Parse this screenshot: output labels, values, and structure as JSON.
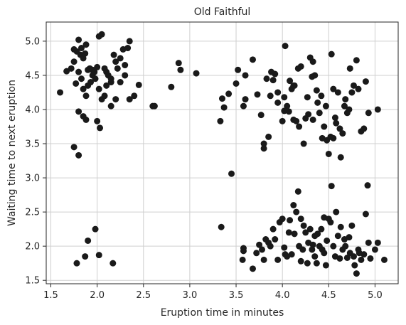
{
  "chart_data": {
    "type": "scatter",
    "title": "Old Faithful",
    "xlabel": "Eruption time in minutes",
    "ylabel": "Waiting time to next eruption",
    "xlim": [
      1.45,
      5.25
    ],
    "ylim": [
      1.45,
      5.28
    ],
    "xticks": [
      1.5,
      2.0,
      2.5,
      3.0,
      3.5,
      4.0,
      4.5,
      5.0
    ],
    "yticks": [
      1.5,
      2.0,
      2.5,
      3.0,
      3.5,
      4.0,
      4.5,
      5.0
    ],
    "xtick_labels": [
      "1.5",
      "2.0",
      "2.5",
      "3.0",
      "3.5",
      "4.0",
      "4.5",
      "5.0"
    ],
    "ytick_labels": [
      "1.5",
      "2.0",
      "2.5",
      "3.0",
      "3.5",
      "4.0",
      "4.5",
      "5.0"
    ],
    "grid": true,
    "marker_color": "#1a1a1a",
    "points": [
      [
        1.6,
        4.25
      ],
      [
        1.67,
        4.56
      ],
      [
        1.72,
        4.6
      ],
      [
        1.75,
        4.88
      ],
      [
        1.75,
        4.7
      ],
      [
        1.78,
        4.85
      ],
      [
        1.8,
        5.02
      ],
      [
        1.82,
        4.8
      ],
      [
        1.83,
        4.9
      ],
      [
        1.85,
        4.75
      ],
      [
        1.87,
        4.82
      ],
      [
        1.88,
        4.95
      ],
      [
        1.9,
        4.58
      ],
      [
        1.92,
        4.6
      ],
      [
        1.95,
        4.5
      ],
      [
        1.97,
        4.55
      ],
      [
        2.0,
        4.62
      ],
      [
        2.02,
        5.07
      ],
      [
        2.05,
        5.1
      ],
      [
        2.08,
        4.6
      ],
      [
        2.1,
        4.55
      ],
      [
        2.12,
        4.5
      ],
      [
        2.15,
        4.4
      ],
      [
        2.18,
        4.8
      ],
      [
        2.2,
        4.7
      ],
      [
        2.22,
        4.6
      ],
      [
        2.25,
        4.75
      ],
      [
        2.28,
        4.88
      ],
      [
        2.3,
        4.65
      ],
      [
        2.33,
        4.9
      ],
      [
        2.35,
        5.0
      ],
      [
        1.77,
        4.38
      ],
      [
        1.8,
        4.55
      ],
      [
        1.83,
        4.45
      ],
      [
        1.85,
        4.3
      ],
      [
        1.88,
        4.2
      ],
      [
        1.9,
        4.35
      ],
      [
        1.93,
        4.4
      ],
      [
        1.95,
        4.58
      ],
      [
        1.98,
        4.45
      ],
      [
        2.02,
        4.3
      ],
      [
        2.05,
        4.15
      ],
      [
        2.08,
        4.2
      ],
      [
        2.1,
        4.35
      ],
      [
        2.15,
        4.45
      ],
      [
        2.2,
        4.15
      ],
      [
        2.25,
        4.4
      ],
      [
        2.3,
        4.5
      ],
      [
        2.35,
        4.15
      ],
      [
        2.4,
        4.2
      ],
      [
        2.45,
        4.36
      ],
      [
        1.8,
        3.97
      ],
      [
        1.85,
        3.9
      ],
      [
        1.88,
        3.85
      ],
      [
        2.0,
        3.83
      ],
      [
        2.03,
        3.73
      ],
      [
        2.15,
        4.05
      ],
      [
        1.75,
        3.45
      ],
      [
        1.8,
        3.33
      ],
      [
        1.78,
        1.75
      ],
      [
        1.87,
        1.85
      ],
      [
        1.9,
        2.08
      ],
      [
        1.98,
        2.25
      ],
      [
        2.02,
        1.87
      ],
      [
        2.17,
        1.75
      ],
      [
        2.6,
        4.05
      ],
      [
        2.62,
        4.05
      ],
      [
        2.8,
        4.33
      ],
      [
        2.88,
        4.68
      ],
      [
        2.9,
        4.58
      ],
      [
        3.07,
        4.53
      ],
      [
        3.33,
        3.83
      ],
      [
        3.35,
        4.16
      ],
      [
        3.37,
        4.03
      ],
      [
        3.42,
        4.23
      ],
      [
        3.5,
        4.38
      ],
      [
        3.52,
        4.58
      ],
      [
        3.58,
        4.05
      ],
      [
        3.6,
        4.5
      ],
      [
        3.6,
        4.15
      ],
      [
        3.68,
        4.73
      ],
      [
        3.73,
        4.22
      ],
      [
        3.77,
        3.92
      ],
      [
        3.8,
        3.5
      ],
      [
        3.8,
        3.43
      ],
      [
        3.83,
        4.45
      ],
      [
        3.85,
        3.6
      ],
      [
        3.87,
        4.2
      ],
      [
        3.88,
        4.55
      ],
      [
        3.9,
        4.43
      ],
      [
        3.92,
        4.52
      ],
      [
        3.95,
        4.25
      ],
      [
        4.0,
        3.83
      ],
      [
        4.02,
        4.18
      ],
      [
        4.03,
        4.93
      ],
      [
        4.05,
        4.05
      ],
      [
        4.07,
        3.97
      ],
      [
        4.08,
        4.42
      ],
      [
        4.1,
        4.3
      ],
      [
        4.12,
        3.85
      ],
      [
        4.13,
        4.35
      ],
      [
        4.15,
        3.83
      ],
      [
        4.17,
        4.6
      ],
      [
        4.2,
        4.63
      ],
      [
        4.23,
        3.5
      ],
      [
        4.25,
        3.87
      ],
      [
        4.27,
        4.18
      ],
      [
        4.28,
        3.93
      ],
      [
        4.3,
        4.76
      ],
      [
        4.32,
        4.48
      ],
      [
        4.33,
        4.7
      ],
      [
        4.35,
        4.5
      ],
      [
        4.37,
        4.28
      ],
      [
        4.38,
        4.1
      ],
      [
        4.4,
        3.95
      ],
      [
        4.42,
        4.2
      ],
      [
        4.45,
        3.75
      ],
      [
        4.47,
        4.05
      ],
      [
        4.48,
        3.55
      ],
      [
        4.5,
        3.35
      ],
      [
        4.52,
        3.6
      ],
      [
        4.53,
        4.81
      ],
      [
        4.55,
        4.3
      ],
      [
        4.57,
        3.88
      ],
      [
        4.58,
        3.8
      ],
      [
        4.6,
        4.25
      ],
      [
        4.62,
        3.72
      ],
      [
        4.63,
        3.3
      ],
      [
        4.65,
        3.65
      ],
      [
        4.67,
        4.05
      ],
      [
        4.68,
        4.15
      ],
      [
        4.7,
        3.95
      ],
      [
        4.72,
        4.0
      ],
      [
        4.73,
        4.6
      ],
      [
        4.75,
        4.25
      ],
      [
        4.77,
        4.35
      ],
      [
        4.8,
        4.72
      ],
      [
        4.82,
        4.3
      ],
      [
        4.85,
        3.68
      ],
      [
        4.88,
        3.72
      ],
      [
        4.9,
        4.41
      ],
      [
        4.93,
        3.95
      ],
      [
        5.03,
        4.0
      ],
      [
        4.55,
        3.58
      ],
      [
        4.43,
        3.58
      ],
      [
        4.33,
        3.85
      ],
      [
        4.18,
        3.75
      ],
      [
        4.12,
        4.35
      ],
      [
        4.02,
        3.98
      ],
      [
        3.95,
        4.1
      ],
      [
        3.34,
        2.28
      ],
      [
        3.45,
        3.06
      ],
      [
        3.57,
        1.8
      ],
      [
        3.58,
        1.93
      ],
      [
        3.58,
        1.97
      ],
      [
        3.68,
        1.67
      ],
      [
        3.72,
        1.9
      ],
      [
        3.75,
        2.02
      ],
      [
        3.78,
        1.95
      ],
      [
        3.8,
        1.8
      ],
      [
        3.82,
        2.1
      ],
      [
        3.85,
        2.05
      ],
      [
        3.87,
        2.0
      ],
      [
        3.9,
        2.25
      ],
      [
        3.92,
        2.1
      ],
      [
        3.95,
        1.8
      ],
      [
        3.97,
        2.35
      ],
      [
        4.0,
        2.4
      ],
      [
        4.02,
        1.98
      ],
      [
        4.03,
        1.88
      ],
      [
        4.05,
        1.85
      ],
      [
        4.07,
        2.2
      ],
      [
        4.08,
        2.38
      ],
      [
        4.1,
        1.88
      ],
      [
        4.12,
        2.6
      ],
      [
        4.13,
        2.18
      ],
      [
        4.15,
        2.5
      ],
      [
        4.17,
        2.8
      ],
      [
        4.18,
        2.0
      ],
      [
        4.2,
        1.78
      ],
      [
        4.22,
        1.95
      ],
      [
        4.23,
        2.3
      ],
      [
        4.25,
        2.2
      ],
      [
        4.27,
        1.75
      ],
      [
        4.28,
        2.05
      ],
      [
        4.3,
        2.25
      ],
      [
        4.32,
        1.95
      ],
      [
        4.33,
        2.02
      ],
      [
        4.35,
        1.85
      ],
      [
        4.37,
        1.75
      ],
      [
        4.38,
        2.18
      ],
      [
        4.4,
        2.0
      ],
      [
        4.42,
        2.25
      ],
      [
        4.43,
        1.95
      ],
      [
        4.45,
        1.9
      ],
      [
        4.47,
        1.72
      ],
      [
        4.48,
        2.08
      ],
      [
        4.5,
        2.4
      ],
      [
        4.52,
        2.35
      ],
      [
        4.53,
        2.88
      ],
      [
        4.55,
        2.0
      ],
      [
        4.57,
        1.85
      ],
      [
        4.58,
        2.5
      ],
      [
        4.6,
        2.15
      ],
      [
        4.62,
        1.82
      ],
      [
        4.63,
        2.28
      ],
      [
        4.65,
        1.95
      ],
      [
        4.67,
        2.1
      ],
      [
        4.68,
        2.0
      ],
      [
        4.7,
        1.83
      ],
      [
        4.72,
        2.13
      ],
      [
        4.73,
        1.9
      ],
      [
        4.75,
        2.3
      ],
      [
        4.77,
        1.85
      ],
      [
        4.78,
        1.72
      ],
      [
        4.8,
        1.6
      ],
      [
        4.82,
        1.95
      ],
      [
        4.83,
        1.9
      ],
      [
        4.85,
        1.8
      ],
      [
        4.88,
        1.88
      ],
      [
        4.9,
        2.47
      ],
      [
        4.92,
        2.89
      ],
      [
        4.93,
        2.05
      ],
      [
        4.95,
        1.82
      ],
      [
        5.0,
        1.95
      ],
      [
        5.03,
        2.05
      ],
      [
        5.1,
        1.8
      ],
      [
        4.45,
        2.42
      ],
      [
        4.35,
        2.15
      ],
      [
        4.2,
        2.4
      ]
    ]
  }
}
